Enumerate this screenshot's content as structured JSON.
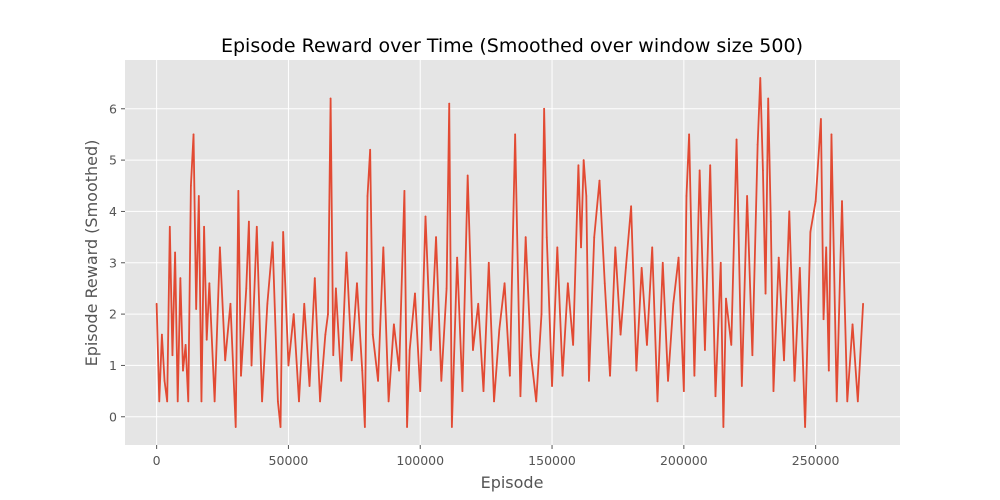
{
  "chart_data": {
    "type": "line",
    "title": "Episode Reward over Time (Smoothed over window size 500)",
    "xlabel": "Episode",
    "ylabel": "Episode Reward (Smoothed)",
    "xlim": [
      -12000,
      282000
    ],
    "ylim": [
      -0.55,
      6.95
    ],
    "xticks": [
      0,
      50000,
      100000,
      150000,
      200000,
      250000
    ],
    "xtick_labels": [
      "0",
      "50000",
      "100000",
      "150000",
      "200000",
      "250000"
    ],
    "yticks": [
      0,
      1,
      2,
      3,
      4,
      5,
      6
    ],
    "ytick_labels": [
      "0",
      "1",
      "2",
      "3",
      "4",
      "5",
      "6"
    ],
    "grid": true,
    "style": "ggplot",
    "colors": {
      "line": "#e24a33",
      "plot_bg": "#e5e5e5",
      "grid": "#ffffff"
    },
    "series": [
      {
        "name": "",
        "x": [
          0,
          1000,
          2000,
          3000,
          4000,
          5000,
          6000,
          7000,
          8000,
          9000,
          10000,
          11000,
          12000,
          13000,
          14000,
          15000,
          16000,
          17000,
          18000,
          19000,
          20000,
          22000,
          24000,
          26000,
          28000,
          30000,
          31000,
          32000,
          34000,
          35000,
          36000,
          38000,
          40000,
          42000,
          44000,
          46000,
          47000,
          48000,
          50000,
          52000,
          54000,
          56000,
          58000,
          60000,
          62000,
          64000,
          65000,
          66000,
          67000,
          68000,
          70000,
          72000,
          74000,
          76000,
          78000,
          79000,
          80000,
          81000,
          82000,
          84000,
          86000,
          88000,
          90000,
          92000,
          94000,
          95000,
          96000,
          98000,
          100000,
          102000,
          104000,
          106000,
          108000,
          110000,
          111000,
          112000,
          114000,
          116000,
          118000,
          120000,
          122000,
          124000,
          126000,
          128000,
          130000,
          132000,
          134000,
          136000,
          138000,
          140000,
          142000,
          144000,
          146000,
          147000,
          148000,
          150000,
          152000,
          154000,
          156000,
          158000,
          160000,
          161000,
          162000,
          163000,
          164000,
          166000,
          168000,
          170000,
          172000,
          174000,
          176000,
          178000,
          180000,
          182000,
          184000,
          186000,
          188000,
          190000,
          192000,
          194000,
          196000,
          198000,
          200000,
          201000,
          202000,
          204000,
          206000,
          208000,
          210000,
          212000,
          214000,
          215000,
          216000,
          218000,
          220000,
          222000,
          224000,
          226000,
          228000,
          229000,
          230000,
          231000,
          232000,
          233000,
          234000,
          236000,
          238000,
          240000,
          242000,
          244000,
          246000,
          248000,
          250000,
          252000,
          253000,
          254000,
          255000,
          256000,
          258000,
          260000,
          262000,
          264000,
          266000,
          268000
        ],
        "values": [
          2.2,
          0.3,
          1.6,
          0.7,
          0.3,
          3.7,
          1.2,
          3.2,
          0.3,
          2.7,
          0.9,
          1.4,
          0.3,
          4.5,
          5.5,
          2.1,
          4.3,
          0.3,
          3.7,
          1.5,
          2.6,
          0.3,
          3.3,
          1.1,
          2.2,
          -0.2,
          4.4,
          0.8,
          2.5,
          3.8,
          1.0,
          3.7,
          0.3,
          2.2,
          3.4,
          0.3,
          -0.2,
          3.6,
          1.0,
          2.0,
          0.3,
          2.2,
          0.6,
          2.7,
          0.3,
          1.6,
          2.0,
          6.2,
          1.2,
          2.5,
          0.7,
          3.2,
          1.1,
          2.6,
          0.9,
          -0.2,
          4.3,
          5.2,
          1.6,
          0.7,
          3.3,
          0.3,
          1.8,
          0.9,
          4.4,
          -0.2,
          1.3,
          2.4,
          0.5,
          3.9,
          1.3,
          3.5,
          0.7,
          2.5,
          6.1,
          -0.2,
          3.1,
          0.5,
          4.7,
          1.3,
          2.2,
          0.5,
          3.0,
          0.3,
          1.7,
          2.6,
          0.8,
          5.5,
          0.4,
          3.5,
          1.2,
          0.3,
          2.0,
          6.0,
          3.5,
          0.6,
          3.3,
          0.8,
          2.6,
          1.4,
          4.9,
          3.3,
          5.0,
          4.3,
          0.7,
          3.5,
          4.6,
          2.6,
          0.8,
          3.3,
          1.6,
          2.9,
          4.1,
          0.9,
          2.9,
          1.4,
          3.3,
          0.3,
          3.0,
          0.7,
          2.2,
          3.1,
          0.5,
          4.3,
          5.5,
          0.8,
          4.8,
          1.3,
          4.9,
          0.4,
          3.0,
          -0.2,
          2.3,
          1.4,
          5.4,
          0.6,
          4.3,
          1.2,
          5.3,
          6.6,
          4.8,
          2.4,
          6.2,
          3.8,
          0.5,
          3.1,
          1.1,
          4.0,
          0.7,
          2.9,
          -0.2,
          3.6,
          4.2,
          5.8,
          1.9,
          3.3,
          0.9,
          5.5,
          0.3,
          4.2,
          0.3,
          1.8,
          0.3,
          2.2
        ]
      }
    ]
  }
}
